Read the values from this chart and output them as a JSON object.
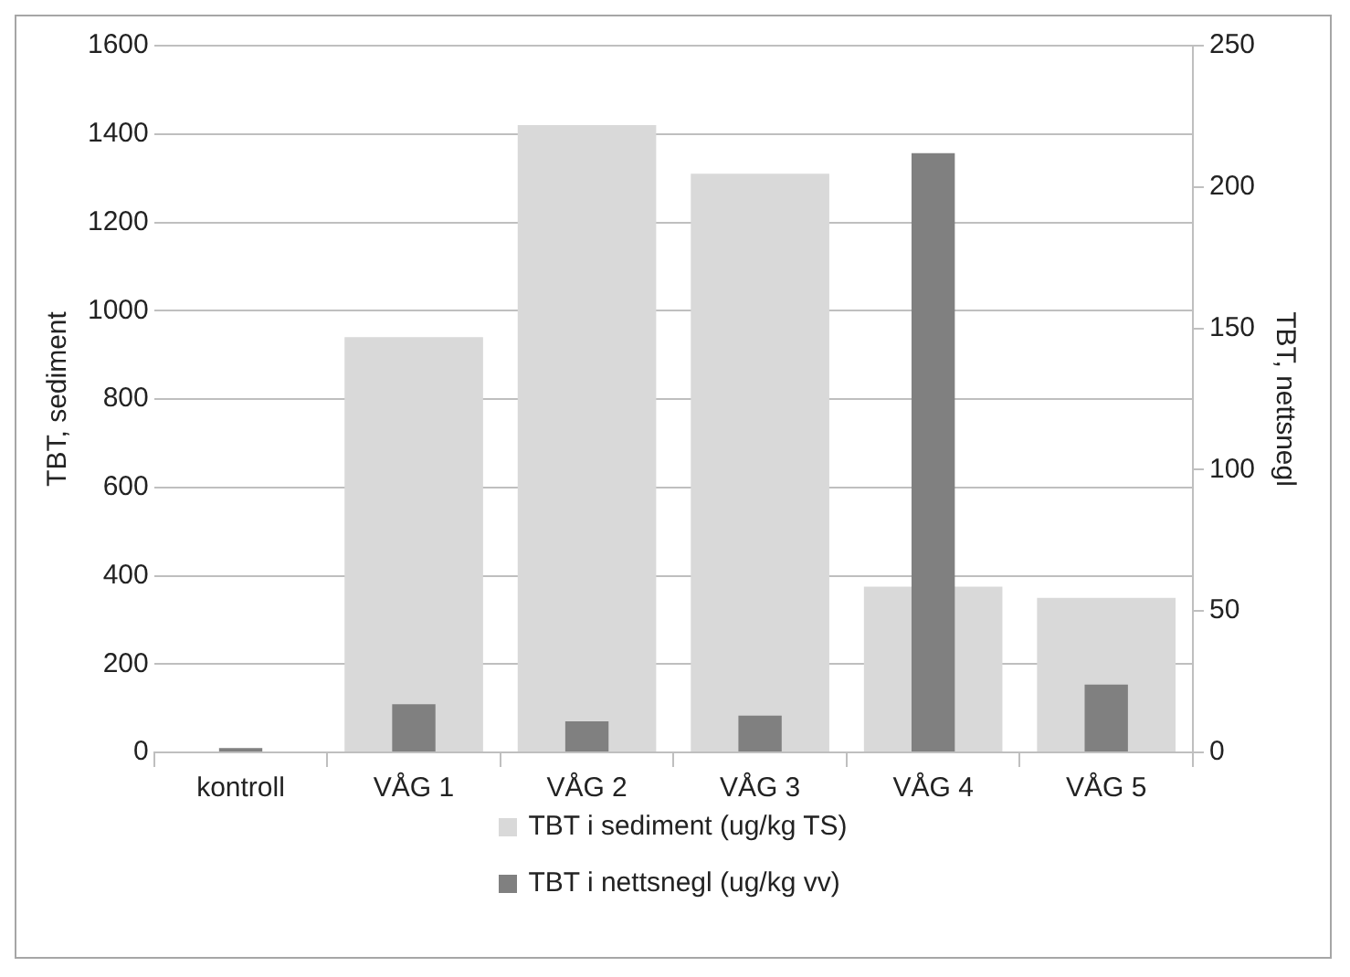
{
  "chart_data": {
    "type": "bar",
    "categories": [
      "kontroll",
      "VÅG 1",
      "VÅG 2",
      "VÅG 3",
      "VÅG 4",
      "VÅG 5"
    ],
    "ylabel": "TBT, sediment",
    "y2label": "TBT, nettsnegl",
    "series": [
      {
        "name": "TBT i sediment (ug/kg TS)",
        "color": "#d9d9d9",
        "values": [
          0,
          940,
          1420,
          1310,
          375,
          350
        ]
      },
      {
        "name": "TBT i nettsnegl (ug/kg vv)",
        "color": "#808080",
        "values": [
          1.5,
          17,
          11,
          13,
          212,
          24
        ],
        "axis": "y2"
      }
    ],
    "ylim": [
      0,
      1600
    ],
    "yticks": [
      0,
      200,
      400,
      600,
      800,
      1000,
      1200,
      1400,
      1600
    ],
    "y2lim": [
      0,
      250
    ],
    "y2ticks": [
      0,
      50,
      100,
      150,
      200,
      250
    ],
    "grid": "y",
    "legend": "bottom"
  }
}
